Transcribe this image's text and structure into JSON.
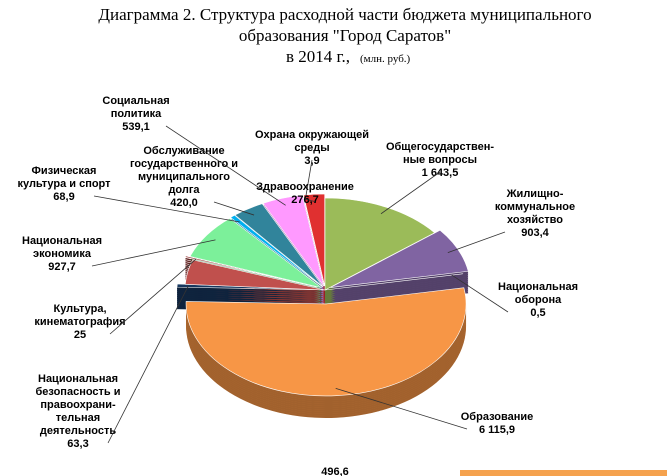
{
  "chart_data": {
    "type": "pie",
    "title": "Диаграмма 2. Структура расходной части бюджета муниципального",
    "title_line2": "образования \"Город Саратов\"",
    "title_line3": "в 2014 г.,",
    "subtitle": "(млн. руб.)",
    "categories": [
      "Общегосударствен-\nные вопросы",
      "Жилищно-\nкоммунальное\nхозяйство",
      "Национальная\nоборона",
      "Образование",
      "Национальная\nбезопасность и\nправоохрани-\nтельная\nдеятельность",
      null,
      "Культура,\nкинематография",
      "Национальная\nэкономика",
      "Физическая\nкультура и спорт",
      "Обслуживание\nгосударственного и\nмуниципального\nдолга",
      "Социальная\nполитика",
      "Охрана окружающей\nсреды",
      "Здравоохранение"
    ],
    "values": [
      1643.5,
      903.4,
      0.5,
      6115.9,
      63.3,
      496.6,
      25,
      927.7,
      68.9,
      420.0,
      539.1,
      3.9,
      276.7
    ],
    "value_labels": [
      "1 643,5",
      "903,4",
      "0,5",
      "6 115,9",
      "63,3",
      "496,6",
      "25",
      "927,7",
      "68,9",
      "420,0",
      "539,1",
      "3,9",
      "276,7"
    ],
    "colors": [
      "#9bbb59",
      "#8064a2",
      "#c0504d",
      "#f79646",
      "#17375e",
      "#c0504d",
      "#953735",
      "#7cf09a",
      "#00b0f0",
      "#31849b",
      "#ff99ff",
      "#1f497d",
      "#e03030"
    ]
  }
}
